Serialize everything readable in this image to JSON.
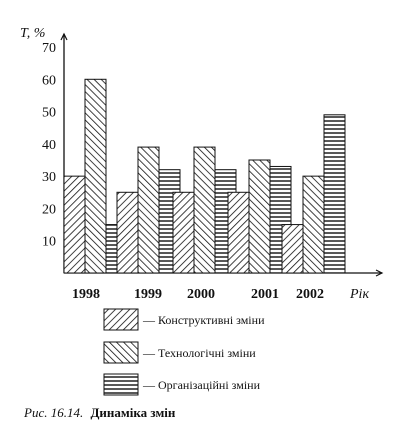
{
  "chart_data": {
    "type": "bar",
    "ylabel": "T, %",
    "xlabel": "Рік",
    "ylim": [
      0,
      70
    ],
    "yticks": [
      10,
      20,
      30,
      40,
      50,
      60,
      70
    ],
    "categories": [
      "1998",
      "1999",
      "2000",
      "2001",
      "2002"
    ],
    "series": [
      {
        "name": "Конструктивні зміни",
        "pattern": "diag-right",
        "values": [
          30,
          25,
          25,
          25,
          15
        ]
      },
      {
        "name": "Технологічні зміни",
        "pattern": "diag-left",
        "values": [
          60,
          39,
          39,
          35,
          30
        ]
      },
      {
        "name": "Організаційні зміни",
        "pattern": "horiz",
        "values": [
          15,
          32,
          32,
          33,
          49
        ]
      }
    ],
    "legend_dash": "—",
    "caption_prefix": "Рис. 16.14.",
    "caption_title": "Динаміка змін",
    "grid": false,
    "legend_position": "bottom"
  }
}
